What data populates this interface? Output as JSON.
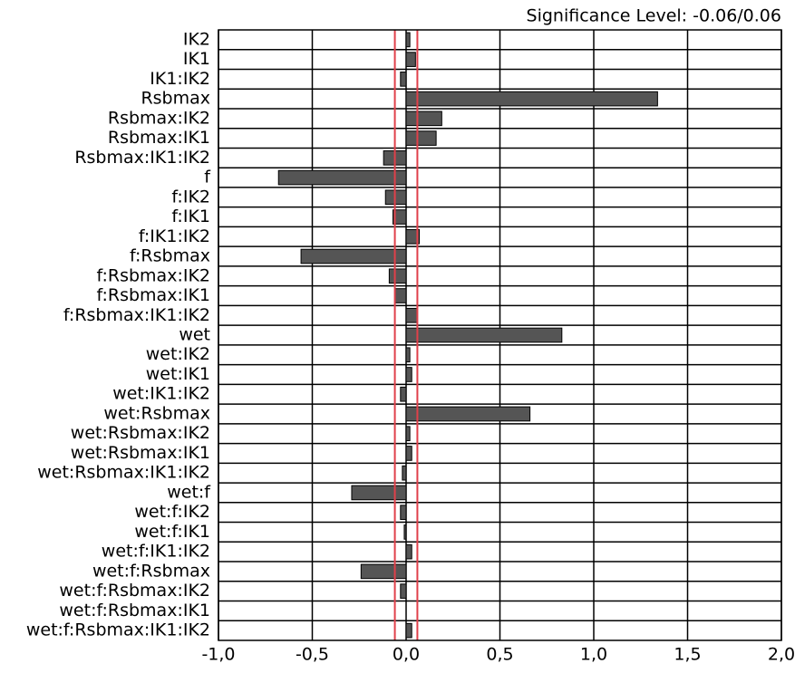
{
  "chart_data": {
    "type": "barh",
    "title": "Significance Level: -0.06/0.06",
    "categories": [
      "IK2",
      "IK1",
      "IK1:IK2",
      "Rsbmax",
      "Rsbmax:IK2",
      "Rsbmax:IK1",
      "Rsbmax:IK1:IK2",
      "f",
      "f:IK2",
      "f:IK1",
      "f:IK1:IK2",
      "f:Rsbmax",
      "f:Rsbmax:IK2",
      "f:Rsbmax:IK1",
      "f:Rsbmax:IK1:IK2",
      "wet",
      "wet:IK2",
      "wet:IK1",
      "wet:IK1:IK2",
      "wet:Rsbmax",
      "wet:Rsbmax:IK2",
      "wet:Rsbmax:IK1",
      "wet:Rsbmax:IK1:IK2",
      "wet:f",
      "wet:f:IK2",
      "wet:f:IK1",
      "wet:f:IK1:IK2",
      "wet:f:Rsbmax",
      "wet:f:Rsbmax:IK2",
      "wet:f:Rsbmax:IK1",
      "wet:f:Rsbmax:IK1:IK2"
    ],
    "values": [
      0.02,
      0.05,
      -0.03,
      1.34,
      0.19,
      0.16,
      -0.12,
      -0.68,
      -0.11,
      -0.07,
      0.07,
      -0.56,
      -0.09,
      -0.06,
      0.06,
      0.83,
      0.02,
      0.03,
      -0.03,
      0.66,
      0.02,
      0.03,
      -0.02,
      -0.29,
      -0.03,
      -0.01,
      0.03,
      -0.24,
      -0.03,
      0.0,
      0.03
    ],
    "color": "#555555",
    "thresholds": [
      -0.06,
      0.06
    ],
    "threshold_color": "#e0404a",
    "xlim": [
      -1,
      2
    ],
    "xticks": [
      {
        "value": -1,
        "label": "-1,0"
      },
      {
        "value": -0.5,
        "label": "-0,5"
      },
      {
        "value": 0,
        "label": "0,0"
      },
      {
        "value": 0.5,
        "label": "0,5"
      },
      {
        "value": 1,
        "label": "1,0"
      },
      {
        "value": 1.5,
        "label": "1,5"
      },
      {
        "value": 2,
        "label": "2,0"
      }
    ],
    "grid": true
  }
}
